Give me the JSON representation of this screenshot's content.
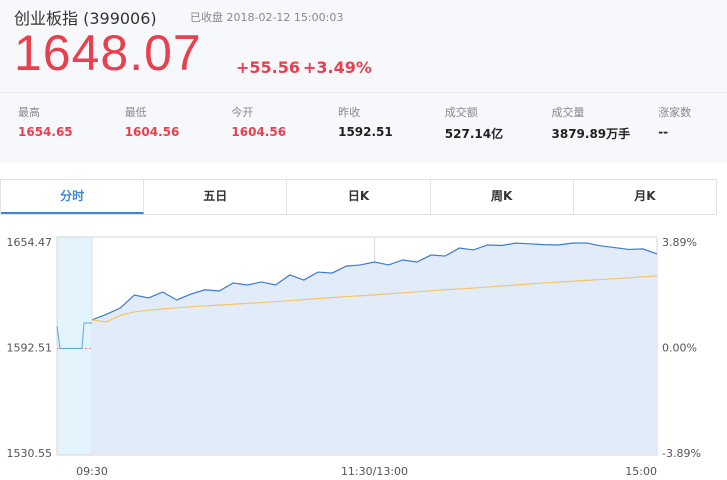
{
  "header": {
    "title": "创业板指 (399006)",
    "status": "已收盘 2018-02-12 15:00:03",
    "price": "1648.07",
    "change": "+55.56",
    "change_pct": "+3.49%"
  },
  "stats": [
    {
      "label": "最高",
      "value": "1654.65"
    },
    {
      "label": "最低",
      "value": "1604.56"
    },
    {
      "label": "今开",
      "value": "1604.56"
    },
    {
      "label": "昨收",
      "value": "1592.51"
    },
    {
      "label": "成交额",
      "value": "527.14亿"
    },
    {
      "label": "成交量",
      "value": "3879.89万手"
    },
    {
      "label": "涨家数",
      "value": "--"
    }
  ],
  "tabs": [
    "分时",
    "五日",
    "日K",
    "周K",
    "月K"
  ],
  "active_tab": 0,
  "chart_data": {
    "type": "line",
    "x": [
      "09:30",
      "09:36",
      "09:42",
      "09:48",
      "09:54",
      "10:00",
      "10:06",
      "10:12",
      "10:18",
      "10:24",
      "10:30",
      "10:36",
      "10:42",
      "10:48",
      "10:54",
      "11:00",
      "11:06",
      "11:12",
      "11:18",
      "11:24",
      "11:30",
      "13:06",
      "13:12",
      "13:18",
      "13:24",
      "13:30",
      "13:36",
      "13:42",
      "13:48",
      "13:54",
      "14:00",
      "14:06",
      "14:12",
      "14:18",
      "14:24",
      "14:30",
      "14:36",
      "14:42",
      "14:48",
      "14:54",
      "15:00"
    ],
    "series": [
      {
        "color": "#3b7bd4",
        "fill": "#e2ecf9",
        "values": [
          1609.3,
          1612.5,
          1616.3,
          1623.9,
          1622.2,
          1625.7,
          1621.0,
          1624.5,
          1627.0,
          1626.3,
          1631.0,
          1629.8,
          1631.6,
          1629.8,
          1635.7,
          1632.7,
          1637.4,
          1636.8,
          1640.9,
          1641.6,
          1643.3,
          1641.6,
          1644.5,
          1643.3,
          1647.4,
          1646.8,
          1651.5,
          1650.4,
          1653.3,
          1653.0,
          1654.4,
          1654.0,
          1653.5,
          1653.3,
          1654.4,
          1654.5,
          1652.8,
          1651.8,
          1650.7,
          1651.0,
          1648.07
        ]
      },
      {
        "color": "#f2c46a",
        "values": [
          1609.3,
          1608.1,
          1612.0,
          1614.0,
          1615.0,
          1615.8,
          1616.4,
          1617.0,
          1617.5,
          1618.0,
          1618.5,
          1619.0,
          1619.5,
          1620.0,
          1620.6,
          1621.2,
          1621.8,
          1622.4,
          1623.0,
          1623.5,
          1624.0,
          1624.6,
          1625.2,
          1625.8,
          1626.4,
          1627.0,
          1627.5,
          1628.0,
          1628.6,
          1629.2,
          1629.8,
          1630.4,
          1631.0,
          1631.5,
          1632.0,
          1632.5,
          1633.0,
          1633.5,
          1634.0,
          1634.6,
          1635.1
        ]
      }
    ],
    "ylim": [
      1530.55,
      1654.47
    ],
    "yticks": [
      1530.55,
      1592.51,
      1654.47
    ],
    "y2lim": [
      -3.89,
      3.89
    ],
    "y2ticks": [
      {
        "value": -3.89,
        "label": "-3.89%"
      },
      {
        "value": 0,
        "label": "0.00%"
      },
      {
        "value": 3.89,
        "label": "3.89%"
      }
    ],
    "xticks": [
      {
        "value": "09:30",
        "label": "09:30"
      },
      {
        "value": "11:30",
        "label": "11:30/13:00"
      },
      {
        "value": "15:00",
        "label": "15:00"
      }
    ]
  }
}
